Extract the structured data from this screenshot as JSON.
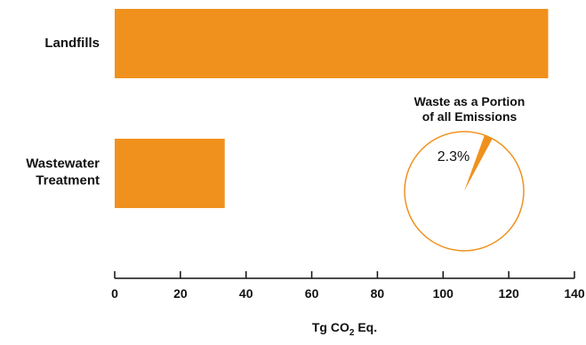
{
  "chart_data": {
    "type": "bar",
    "orientation": "horizontal",
    "categories": [
      "Landfills",
      "Wastewater Treatment"
    ],
    "category_lines": [
      [
        "Landfills"
      ],
      [
        "Wastewater",
        "Treatment"
      ]
    ],
    "values": [
      132.0,
      33.5
    ],
    "xlim": [
      0,
      140
    ],
    "xticks": [
      0,
      20,
      40,
      60,
      80,
      100,
      120,
      140
    ],
    "xlabel": {
      "prefix": "Tg CO",
      "sub": "2",
      "suffix": " Eq."
    },
    "bar_color": "#F0911E",
    "grid": false,
    "inset": {
      "type": "pie",
      "title_lines": [
        "Waste as a Portion",
        "of all Emissions"
      ],
      "slice_value": 2.3,
      "slice_label": "2.3%",
      "slice_color": "#F0911E",
      "outline_color": "#F0911E"
    }
  }
}
